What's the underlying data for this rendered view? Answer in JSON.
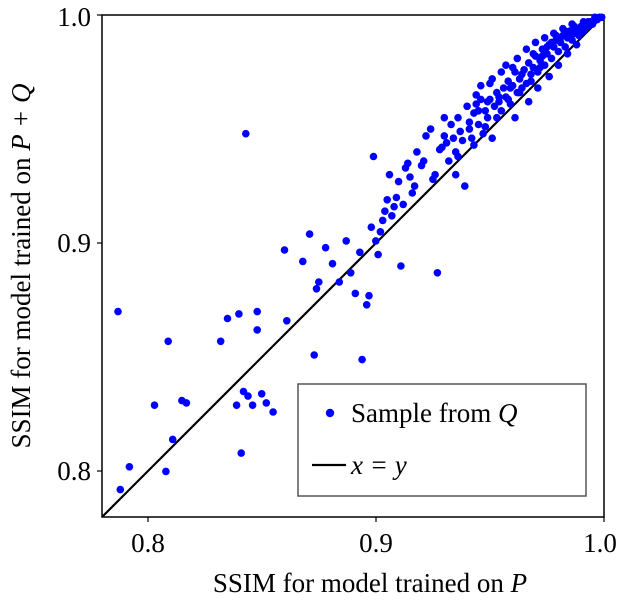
{
  "chart_data": {
    "type": "scatter",
    "xlabel": "SSIM for model trained on",
    "xlabel_var": "P",
    "ylabel": "SSIM for model trained on",
    "ylabel_var": "P + Q",
    "xlim": [
      0.78,
      1.0
    ],
    "ylim": [
      0.78,
      1.0
    ],
    "xticks": [
      0.8,
      0.9,
      1.0
    ],
    "yticks": [
      0.8,
      0.9,
      1.0
    ],
    "xtick_labels": [
      "0.8",
      "0.9",
      "1.0"
    ],
    "ytick_labels": [
      "0.8",
      "0.9",
      "1.0"
    ],
    "legend": {
      "position": "lower-right",
      "entries": [
        {
          "label": "Sample from",
          "var": "Q",
          "kind": "marker"
        },
        {
          "label": "x = y",
          "kind": "line"
        }
      ]
    },
    "reference_line": {
      "name": "x = y",
      "from": [
        0.78,
        0.78
      ],
      "to": [
        1.0,
        1.0
      ]
    },
    "series": [
      {
        "name": "Sample from Q",
        "color": "#0000ff",
        "points": [
          [
            0.787,
            0.87
          ],
          [
            0.788,
            0.792
          ],
          [
            0.792,
            0.802
          ],
          [
            0.808,
            0.8
          ],
          [
            0.803,
            0.829
          ],
          [
            0.811,
            0.814
          ],
          [
            0.809,
            0.857
          ],
          [
            0.815,
            0.831
          ],
          [
            0.817,
            0.83
          ],
          [
            0.832,
            0.857
          ],
          [
            0.835,
            0.867
          ],
          [
            0.839,
            0.829
          ],
          [
            0.84,
            0.869
          ],
          [
            0.841,
            0.808
          ],
          [
            0.842,
            0.835
          ],
          [
            0.844,
            0.833
          ],
          [
            0.846,
            0.829
          ],
          [
            0.848,
            0.87
          ],
          [
            0.848,
            0.862
          ],
          [
            0.85,
            0.834
          ],
          [
            0.852,
            0.83
          ],
          [
            0.855,
            0.826
          ],
          [
            0.843,
            0.948
          ],
          [
            0.861,
            0.866
          ],
          [
            0.86,
            0.897
          ],
          [
            0.868,
            0.892
          ],
          [
            0.871,
            0.904
          ],
          [
            0.873,
            0.851
          ],
          [
            0.874,
            0.88
          ],
          [
            0.875,
            0.883
          ],
          [
            0.878,
            0.898
          ],
          [
            0.881,
            0.891
          ],
          [
            0.884,
            0.883
          ],
          [
            0.887,
            0.901
          ],
          [
            0.891,
            0.878
          ],
          [
            0.894,
            0.849
          ],
          [
            0.896,
            0.873
          ],
          [
            0.897,
            0.877
          ],
          [
            0.899,
            0.938
          ],
          [
            0.901,
            0.895
          ],
          [
            0.903,
            0.91
          ],
          [
            0.904,
            0.914
          ],
          [
            0.906,
            0.93
          ],
          [
            0.908,
            0.916
          ],
          [
            0.909,
            0.92
          ],
          [
            0.91,
            0.927
          ],
          [
            0.911,
            0.89
          ],
          [
            0.912,
            0.917
          ],
          [
            0.913,
            0.933
          ],
          [
            0.914,
            0.935
          ],
          [
            0.915,
            0.929
          ],
          [
            0.916,
            0.922
          ],
          [
            0.918,
            0.94
          ],
          [
            0.92,
            0.934
          ],
          [
            0.922,
            0.947
          ],
          [
            0.924,
            0.95
          ],
          [
            0.926,
            0.93
          ],
          [
            0.927,
            0.887
          ],
          [
            0.928,
            0.941
          ],
          [
            0.93,
            0.947
          ],
          [
            0.932,
            0.936
          ],
          [
            0.933,
            0.952
          ],
          [
            0.935,
            0.94
          ],
          [
            0.936,
            0.955
          ],
          [
            0.938,
            0.945
          ],
          [
            0.939,
            0.925
          ],
          [
            0.94,
            0.96
          ],
          [
            0.941,
            0.95
          ],
          [
            0.942,
            0.946
          ],
          [
            0.943,
            0.957
          ],
          [
            0.944,
            0.961
          ],
          [
            0.945,
            0.952
          ],
          [
            0.946,
            0.963
          ],
          [
            0.947,
            0.948
          ],
          [
            0.948,
            0.958
          ],
          [
            0.949,
            0.955
          ],
          [
            0.95,
            0.963
          ],
          [
            0.951,
            0.946
          ],
          [
            0.952,
            0.96
          ],
          [
            0.953,
            0.966
          ],
          [
            0.954,
            0.962
          ],
          [
            0.955,
            0.958
          ],
          [
            0.956,
            0.968
          ],
          [
            0.957,
            0.964
          ],
          [
            0.958,
            0.971
          ],
          [
            0.959,
            0.961
          ],
          [
            0.96,
            0.969
          ],
          [
            0.961,
            0.975
          ],
          [
            0.962,
            0.966
          ],
          [
            0.963,
            0.972
          ],
          [
            0.964,
            0.968
          ],
          [
            0.965,
            0.976
          ],
          [
            0.966,
            0.97
          ],
          [
            0.967,
            0.979
          ],
          [
            0.968,
            0.974
          ],
          [
            0.969,
            0.977
          ],
          [
            0.97,
            0.982
          ],
          [
            0.971,
            0.975
          ],
          [
            0.972,
            0.98
          ],
          [
            0.973,
            0.985
          ],
          [
            0.974,
            0.978
          ],
          [
            0.975,
            0.983
          ],
          [
            0.976,
            0.987
          ],
          [
            0.977,
            0.981
          ],
          [
            0.978,
            0.986
          ],
          [
            0.979,
            0.989
          ],
          [
            0.98,
            0.984
          ],
          [
            0.981,
            0.988
          ],
          [
            0.982,
            0.991
          ],
          [
            0.983,
            0.986
          ],
          [
            0.984,
            0.99
          ],
          [
            0.985,
            0.993
          ],
          [
            0.986,
            0.989
          ],
          [
            0.987,
            0.992
          ],
          [
            0.988,
            0.994
          ],
          [
            0.989,
            0.991
          ],
          [
            0.99,
            0.995
          ],
          [
            0.991,
            0.993
          ],
          [
            0.992,
            0.996
          ],
          [
            0.993,
            0.995
          ],
          [
            0.994,
            0.997
          ],
          [
            0.995,
            0.996
          ],
          [
            0.996,
            0.998
          ],
          [
            0.997,
            0.998
          ],
          [
            0.998,
            0.999
          ],
          [
            0.999,
            0.999
          ],
          [
            0.962,
            0.981
          ],
          [
            0.957,
            0.978
          ],
          [
            0.951,
            0.972
          ],
          [
            0.946,
            0.969
          ],
          [
            0.955,
            0.975
          ],
          [
            0.966,
            0.985
          ],
          [
            0.97,
            0.988
          ],
          [
            0.974,
            0.99
          ],
          [
            0.978,
            0.992
          ],
          [
            0.982,
            0.994
          ],
          [
            0.986,
            0.996
          ],
          [
            0.961,
            0.955
          ],
          [
            0.967,
            0.962
          ],
          [
            0.971,
            0.968
          ],
          [
            0.976,
            0.973
          ],
          [
            0.98,
            0.978
          ],
          [
            0.984,
            0.983
          ],
          [
            0.988,
            0.987
          ],
          [
            0.943,
            0.943
          ],
          [
            0.948,
            0.951
          ],
          [
            0.953,
            0.955
          ],
          [
            0.958,
            0.963
          ],
          [
            0.936,
            0.938
          ],
          [
            0.931,
            0.944
          ],
          [
            0.925,
            0.928
          ],
          [
            0.921,
            0.936
          ],
          [
            0.917,
            0.925
          ],
          [
            0.907,
            0.912
          ],
          [
            0.902,
            0.905
          ],
          [
            0.898,
            0.907
          ],
          [
            0.893,
            0.896
          ],
          [
            0.889,
            0.887
          ],
          [
            0.9,
            0.901
          ],
          [
            0.905,
            0.919
          ],
          [
            0.93,
            0.955
          ],
          [
            0.944,
            0.965
          ],
          [
            0.95,
            0.97
          ],
          [
            0.96,
            0.977
          ],
          [
            0.964,
            0.974
          ],
          [
            0.969,
            0.983
          ],
          [
            0.973,
            0.982
          ],
          [
            0.977,
            0.988
          ],
          [
            0.981,
            0.99
          ],
          [
            0.985,
            0.991
          ],
          [
            0.989,
            0.994
          ],
          [
            0.993,
            0.997
          ],
          [
            0.996,
            0.999
          ],
          [
            0.991,
            0.997
          ],
          [
            0.987,
            0.995
          ],
          [
            0.983,
            0.993
          ],
          [
            0.979,
            0.991
          ],
          [
            0.975,
            0.986
          ],
          [
            0.972,
            0.977
          ],
          [
            0.968,
            0.971
          ],
          [
            0.963,
            0.966
          ],
          [
            0.959,
            0.968
          ],
          [
            0.954,
            0.964
          ],
          [
            0.949,
            0.962
          ],
          [
            0.945,
            0.958
          ],
          [
            0.941,
            0.953
          ],
          [
            0.937,
            0.949
          ],
          [
            0.934,
            0.946
          ],
          [
            0.929,
            0.942
          ],
          [
            0.935,
            0.93
          ]
        ]
      }
    ]
  },
  "colors": {
    "marker": "#0000ff",
    "line": "#000000",
    "legend_border": "#555555"
  }
}
